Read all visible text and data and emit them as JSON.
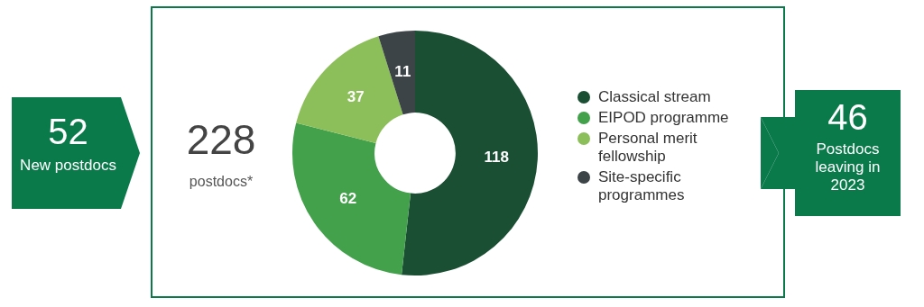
{
  "chart_data": {
    "type": "donut",
    "categories": [
      "Classical stream",
      "EIPOD programme",
      "Personal merit fellowship",
      "Site-specific programmes"
    ],
    "values": [
      118,
      62,
      37,
      11
    ],
    "colors": [
      "#1b4f34",
      "#43a04b",
      "#8cbf5a",
      "#3c4447"
    ],
    "data_labels": true,
    "legend": "right",
    "annotations": [
      "228",
      "postdocs*",
      "52",
      "New postdocs",
      "46",
      "Postdocs leaving in 2023"
    ]
  }
}
